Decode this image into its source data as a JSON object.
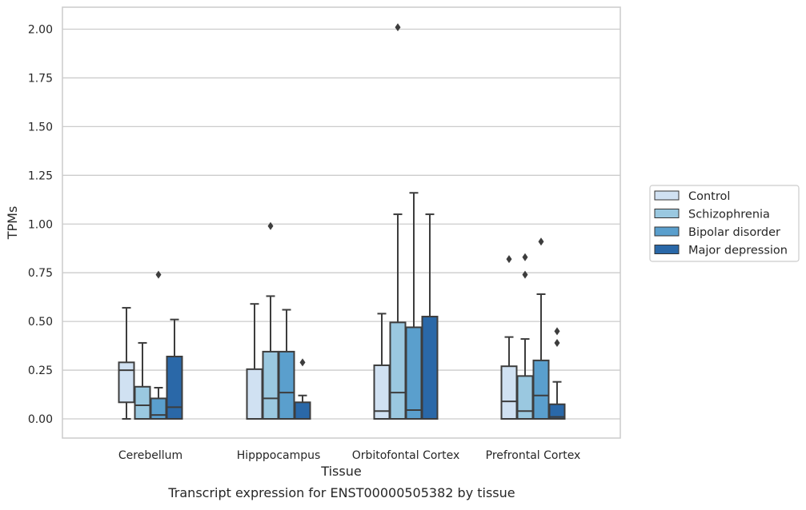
{
  "chart_data": {
    "type": "box",
    "xlabel": "Tissue",
    "ylabel": "TPMs",
    "caption": "Transcript expression for ENST00000505382 by tissue",
    "ylim": [
      -0.1,
      2.12
    ],
    "yticks": [
      "2.00",
      "1.75",
      "1.50",
      "1.25",
      "1.00",
      "0.75",
      "0.50",
      "0.25",
      "0.00"
    ],
    "ytick_values": [
      2.0,
      1.75,
      1.5,
      1.25,
      1.0,
      0.75,
      0.5,
      0.25,
      0.0
    ],
    "grid": "horizontal",
    "legend_position": "right",
    "categories": [
      "Cerebellum",
      "Hipppocampus",
      "Orbitofontal Cortex",
      "Prefrontal Cortex"
    ],
    "series": [
      {
        "name": "Control",
        "color": "#d0e1f2",
        "boxes": [
          {
            "whisker_low": 0.0,
            "q1": 0.085,
            "median": 0.25,
            "q3": 0.29,
            "whisker_high": 0.57,
            "outliers": []
          },
          {
            "whisker_low": 0.0,
            "q1": 0.0,
            "median": 0.0,
            "q3": 0.255,
            "whisker_high": 0.59,
            "outliers": []
          },
          {
            "whisker_low": 0.0,
            "q1": 0.0,
            "median": 0.04,
            "q3": 0.275,
            "whisker_high": 0.54,
            "outliers": []
          },
          {
            "whisker_low": 0.0,
            "q1": 0.0,
            "median": 0.09,
            "q3": 0.27,
            "whisker_high": 0.42,
            "outliers": [
              0.82
            ]
          }
        ]
      },
      {
        "name": "Schizophrenia",
        "color": "#9ac8e0",
        "boxes": [
          {
            "whisker_low": 0.0,
            "q1": 0.0,
            "median": 0.07,
            "q3": 0.165,
            "whisker_high": 0.39,
            "outliers": []
          },
          {
            "whisker_low": 0.0,
            "q1": 0.0,
            "median": 0.105,
            "q3": 0.345,
            "whisker_high": 0.63,
            "outliers": [
              0.99
            ]
          },
          {
            "whisker_low": 0.0,
            "q1": 0.0,
            "median": 0.135,
            "q3": 0.495,
            "whisker_high": 1.05,
            "outliers": [
              2.01
            ]
          },
          {
            "whisker_low": 0.0,
            "q1": 0.0,
            "median": 0.04,
            "q3": 0.22,
            "whisker_high": 0.41,
            "outliers": [
              0.74,
              0.83
            ]
          }
        ]
      },
      {
        "name": "Bipolar disorder",
        "color": "#5a9fcd",
        "boxes": [
          {
            "whisker_low": 0.0,
            "q1": 0.0,
            "median": 0.02,
            "q3": 0.105,
            "whisker_high": 0.16,
            "outliers": [
              0.74
            ]
          },
          {
            "whisker_low": 0.0,
            "q1": 0.0,
            "median": 0.135,
            "q3": 0.345,
            "whisker_high": 0.56,
            "outliers": []
          },
          {
            "whisker_low": 0.0,
            "q1": 0.0,
            "median": 0.045,
            "q3": 0.47,
            "whisker_high": 1.16,
            "outliers": []
          },
          {
            "whisker_low": 0.0,
            "q1": 0.0,
            "median": 0.12,
            "q3": 0.3,
            "whisker_high": 0.64,
            "outliers": [
              0.91
            ]
          }
        ]
      },
      {
        "name": "Major depression",
        "color": "#2a68a8",
        "boxes": [
          {
            "whisker_low": 0.0,
            "q1": 0.0,
            "median": 0.06,
            "q3": 0.32,
            "whisker_high": 0.51,
            "outliers": []
          },
          {
            "whisker_low": 0.0,
            "q1": 0.0,
            "median": 0.0,
            "q3": 0.085,
            "whisker_high": 0.12,
            "outliers": [
              0.29
            ]
          },
          {
            "whisker_low": 0.0,
            "q1": 0.0,
            "median": 0.0,
            "q3": 0.525,
            "whisker_high": 1.05,
            "outliers": []
          },
          {
            "whisker_low": 0.0,
            "q1": 0.0,
            "median": 0.01,
            "q3": 0.075,
            "whisker_high": 0.19,
            "outliers": [
              0.39,
              0.45
            ]
          }
        ]
      }
    ]
  }
}
